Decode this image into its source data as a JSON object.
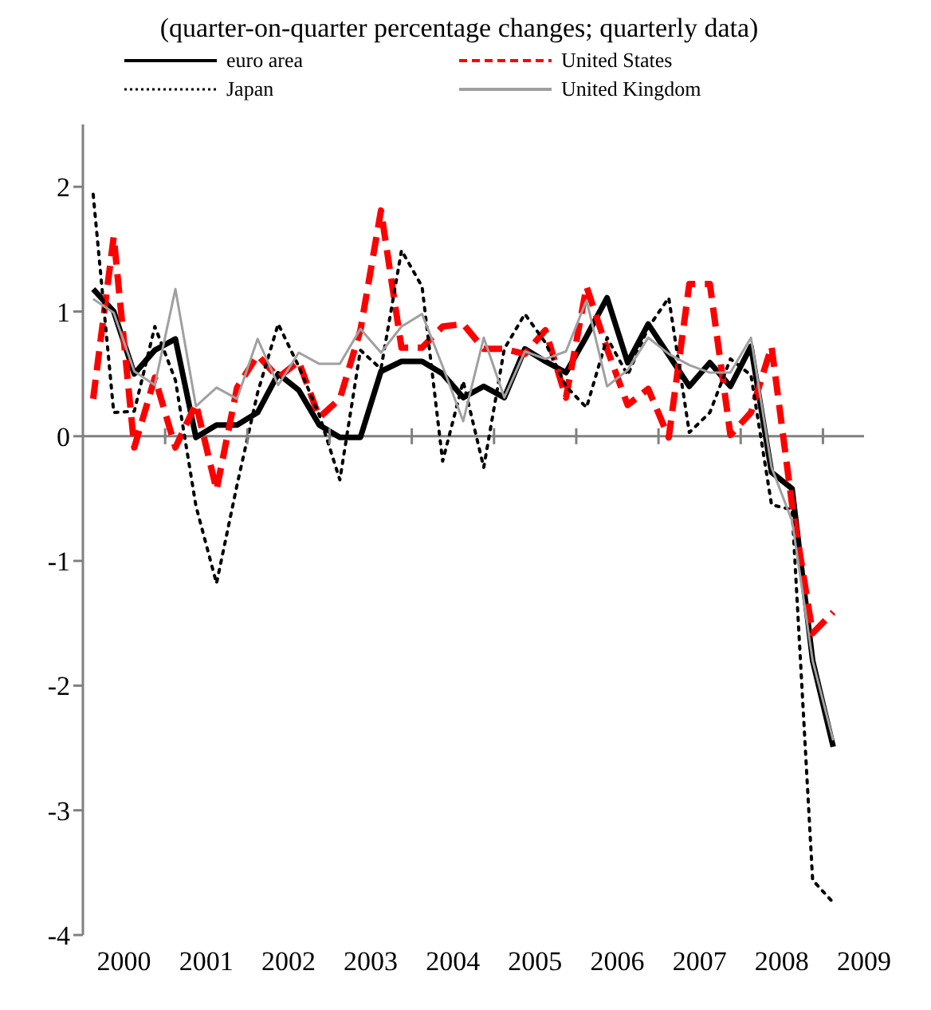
{
  "chart_data": {
    "type": "line",
    "title": "(quarter-on-quarter percentage changes; quarterly data)",
    "x": [
      2000.125,
      2000.375,
      2000.625,
      2000.875,
      2001.125,
      2001.375,
      2001.625,
      2001.875,
      2002.125,
      2002.375,
      2002.625,
      2002.875,
      2003.125,
      2003.375,
      2003.625,
      2003.875,
      2004.125,
      2004.375,
      2004.625,
      2004.875,
      2005.125,
      2005.375,
      2005.625,
      2005.875,
      2006.125,
      2006.375,
      2006.625,
      2006.875,
      2007.125,
      2007.375,
      2007.625,
      2007.875,
      2008.125,
      2008.375,
      2008.625,
      2008.875,
      2009.125
    ],
    "series": [
      {
        "name": "euro area",
        "color": "#000000",
        "line_style": "solid",
        "values": [
          1.18,
          1.0,
          0.5,
          0.69,
          0.78,
          -0.01,
          0.09,
          0.09,
          0.19,
          0.5,
          0.37,
          0.09,
          -0.01,
          -0.01,
          0.52,
          0.6,
          0.6,
          0.5,
          0.31,
          0.4,
          0.31,
          0.7,
          0.6,
          0.51,
          0.8,
          1.11,
          0.59,
          0.9,
          0.65,
          0.4,
          0.59,
          0.4,
          0.72,
          -0.29,
          -0.42,
          -1.8,
          -2.49
        ]
      },
      {
        "name": "United States",
        "color": "#ff0000",
        "line_style": "dashed",
        "values": [
          0.3,
          1.6,
          -0.09,
          0.47,
          -0.09,
          0.26,
          -0.43,
          0.39,
          0.65,
          0.47,
          0.6,
          0.15,
          0.3,
          0.85,
          1.81,
          0.71,
          0.71,
          0.88,
          0.9,
          0.7,
          0.7,
          0.66,
          0.85,
          0.31,
          1.2,
          0.7,
          0.25,
          0.38,
          -0.01,
          1.22,
          1.22,
          0.01,
          0.19,
          0.72,
          -0.55,
          -1.58,
          -1.41
        ]
      },
      {
        "name": "Japan",
        "color": "#000000",
        "line_style": "dotted",
        "values": [
          1.94,
          0.19,
          0.2,
          0.88,
          0.45,
          -0.56,
          -1.18,
          -0.39,
          0.35,
          0.9,
          0.56,
          0.17,
          -0.35,
          0.69,
          0.54,
          1.49,
          1.2,
          -0.2,
          0.44,
          -0.25,
          0.7,
          0.98,
          0.75,
          0.4,
          0.23,
          0.79,
          0.49,
          0.87,
          1.11,
          0.03,
          0.19,
          0.62,
          0.49,
          -0.55,
          -0.59,
          -3.56,
          -3.74
        ]
      },
      {
        "name": "United Kingdom",
        "color": "#a0a0a0",
        "line_style": "solid",
        "values": [
          1.1,
          0.99,
          0.52,
          0.41,
          1.18,
          0.24,
          0.39,
          0.3,
          0.78,
          0.41,
          0.67,
          0.58,
          0.58,
          0.86,
          0.67,
          0.88,
          0.98,
          0.56,
          0.12,
          0.79,
          0.31,
          0.68,
          0.62,
          0.68,
          1.09,
          0.4,
          0.53,
          0.79,
          0.66,
          0.57,
          0.51,
          0.51,
          0.79,
          -0.25,
          -0.68,
          -1.8,
          -2.44
        ]
      }
    ],
    "xlim": [
      2000,
      2009.5
    ],
    "xticks": [
      {
        "value": 2000.5,
        "label": "2000"
      },
      {
        "value": 2001,
        "label": null
      },
      {
        "value": 2001.5,
        "label": "2001"
      },
      {
        "value": 2002,
        "label": null
      },
      {
        "value": 2002.5,
        "label": "2002"
      },
      {
        "value": 2003,
        "label": null
      },
      {
        "value": 2003.5,
        "label": "2003"
      },
      {
        "value": 2004,
        "label": null
      },
      {
        "value": 2004.5,
        "label": "2004"
      },
      {
        "value": 2005,
        "label": null
      },
      {
        "value": 2005.5,
        "label": "2005"
      },
      {
        "value": 2006,
        "label": null
      },
      {
        "value": 2006.5,
        "label": "2006"
      },
      {
        "value": 2007,
        "label": null
      },
      {
        "value": 2007.5,
        "label": "2007"
      },
      {
        "value": 2008,
        "label": null
      },
      {
        "value": 2008.5,
        "label": "2008"
      },
      {
        "value": 2009,
        "label": null
      },
      {
        "value": 2009.5,
        "label": "2009"
      }
    ],
    "ylim": [
      -4,
      2.5
    ],
    "yticks": [
      -4,
      -3,
      -2,
      -1,
      0,
      1,
      2
    ],
    "ref_lines": [
      {
        "axis": "y",
        "value": 0,
        "color": "#808080"
      }
    ],
    "grid": false,
    "legend": "top"
  }
}
